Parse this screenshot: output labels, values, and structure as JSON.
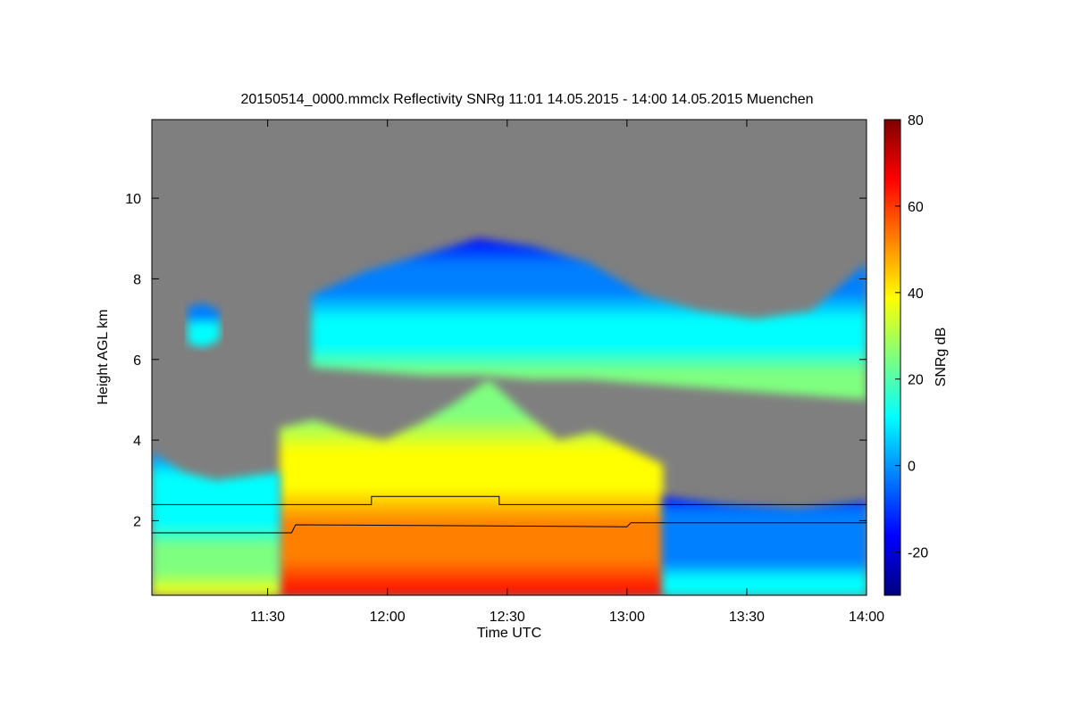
{
  "chart_data": {
    "type": "heatmap",
    "title": "20150514_0000.mmclx Reflectivity SNRg   11:01 14.05.2015 - 14:00 14.05.2015 Muenchen",
    "xlabel": "Time UTC",
    "ylabel": "Height AGL km",
    "colorbar_label": "SNRg dB",
    "x_ticks": [
      {
        "label": "11:30",
        "minutes": 90
      },
      {
        "label": "12:00",
        "minutes": 120
      },
      {
        "label": "12:30",
        "minutes": 150
      },
      {
        "label": "13:00",
        "minutes": 180
      },
      {
        "label": "13:30",
        "minutes": 210
      },
      {
        "label": "14:00",
        "minutes": 240
      }
    ],
    "x_range_minutes": [
      61,
      240
    ],
    "y_ticks": [
      2,
      4,
      6,
      8,
      10
    ],
    "y_range_km": [
      0.15,
      11.95
    ],
    "colorbar_ticks": [
      -20,
      0,
      20,
      40,
      60,
      80
    ],
    "colorbar_range": [
      -30,
      80
    ],
    "background_color": "#7f7f7f",
    "colormap": [
      "#00007f",
      "#0000ff",
      "#007fff",
      "#00ffff",
      "#7fff7f",
      "#ffff00",
      "#ff7f00",
      "#ff0000",
      "#7f0000"
    ],
    "regions": [
      {
        "name": "upper-cloud",
        "x": [
          101,
          240
        ],
        "top": [
          7.6,
          8.2,
          8.6,
          9.0,
          8.8,
          8.4,
          7.6,
          7.2,
          7.0,
          7.2,
          8.4
        ],
        "bottom": [
          5.8,
          5.7,
          5.6,
          5.6,
          5.5,
          5.5,
          5.4,
          5.3,
          5.2,
          5.1,
          5.0
        ],
        "snr_min": -10,
        "snr_max": 25
      },
      {
        "name": "small-cloud-left",
        "x": [
          70,
          78
        ],
        "top": [
          7.3,
          7.4,
          7.2
        ],
        "bottom": [
          6.4,
          6.3,
          6.5
        ],
        "snr_min": -5,
        "snr_max": 15
      },
      {
        "name": "main-convection",
        "x": [
          93,
          189
        ],
        "top": [
          4.3,
          4.5,
          4.2,
          4.0,
          4.4,
          4.9,
          5.5,
          4.7,
          4.0,
          4.2,
          3.8,
          3.4
        ],
        "bottom": [
          0.15,
          0.15,
          0.15,
          0.15,
          0.15,
          0.15,
          0.15,
          0.15,
          0.15,
          0.15,
          0.15,
          0.15
        ],
        "snr_min": 20,
        "snr_max": 65
      },
      {
        "name": "low-left-layer",
        "x": [
          61,
          93
        ],
        "top": [
          3.7,
          3.2,
          3.0,
          3.1,
          3.2
        ],
        "bottom": [
          0.15,
          0.15,
          0.15,
          0.15,
          0.15
        ],
        "snr_min": 0,
        "snr_max": 35
      },
      {
        "name": "right-low-echo",
        "x": [
          189,
          240
        ],
        "top": [
          2.6,
          2.4,
          2.3,
          2.5
        ],
        "bottom": [
          0.15,
          0.15,
          0.15,
          0.15
        ],
        "snr_min": -10,
        "snr_max": 10
      }
    ],
    "series": [
      {
        "x": [
          61,
          95,
          116,
          116,
          148,
          148,
          240
        ],
        "y": [
          2.4,
          2.4,
          2.4,
          2.6,
          2.6,
          2.4,
          2.4
        ]
      },
      {
        "x": [
          61,
          96,
          97,
          180,
          181,
          240
        ],
        "y": [
          1.7,
          1.7,
          1.9,
          1.85,
          1.95,
          1.95
        ]
      }
    ]
  }
}
